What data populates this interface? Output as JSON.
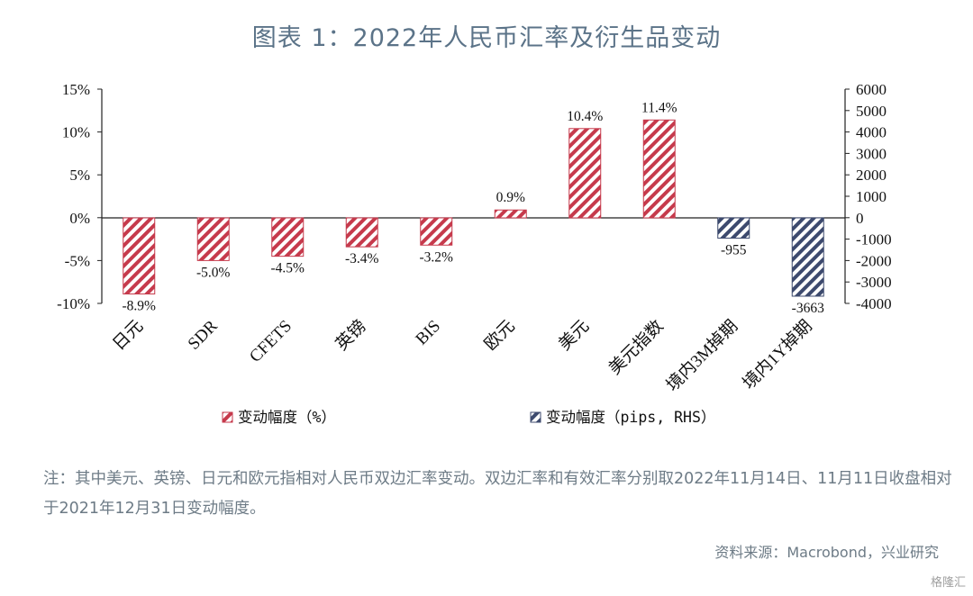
{
  "title": "图表 1：2022年人民币汇率及衍生品变动",
  "note": "注：其中美元、英镑、日元和欧元指相对人民币双边汇率变动。双边汇率和有效汇率分别取2022年11月14日、11月11日收盘相对于2021年12月31日变动幅度。",
  "source": "资料来源：Macrobond，兴业研究",
  "watermark": "格隆汇",
  "colors": {
    "primary": "#c63a4c",
    "secondary": "#3d4a6e",
    "axis": "#222222"
  },
  "chart_data": {
    "type": "bar",
    "categories": [
      "日元",
      "SDR",
      "CFETS",
      "英镑",
      "BIS",
      "欧元",
      "美元",
      "美元指数",
      "境内3M掉期",
      "境内1Y掉期"
    ],
    "left_axis": {
      "ylim": [
        -10,
        15
      ],
      "ticks": [
        "-10%",
        "-5%",
        "0%",
        "5%",
        "10%",
        "15%"
      ]
    },
    "right_axis": {
      "ylim": [
        -4000,
        6000
      ],
      "ticks": [
        "-4000",
        "-3000",
        "-2000",
        "-1000",
        "0",
        "1000",
        "2000",
        "3000",
        "4000",
        "5000",
        "6000"
      ]
    },
    "series": [
      {
        "name": "变动幅度（%）",
        "axis": "left",
        "values": [
          -8.9,
          -5.0,
          -4.5,
          -3.4,
          -3.2,
          0.9,
          10.4,
          11.4,
          null,
          null
        ],
        "labels": [
          "-8.9%",
          "-5.0%",
          "-4.5%",
          "-3.4%",
          "-3.2%",
          "0.9%",
          "10.4%",
          "11.4%",
          "",
          ""
        ]
      },
      {
        "name": "变动幅度（pips, RHS）",
        "axis": "right",
        "values": [
          null,
          null,
          null,
          null,
          null,
          null,
          null,
          null,
          -955,
          -3663
        ],
        "labels": [
          "",
          "",
          "",
          "",
          "",
          "",
          "",
          "",
          "-955",
          "-3663"
        ]
      }
    ],
    "legend_position": "bottom"
  }
}
